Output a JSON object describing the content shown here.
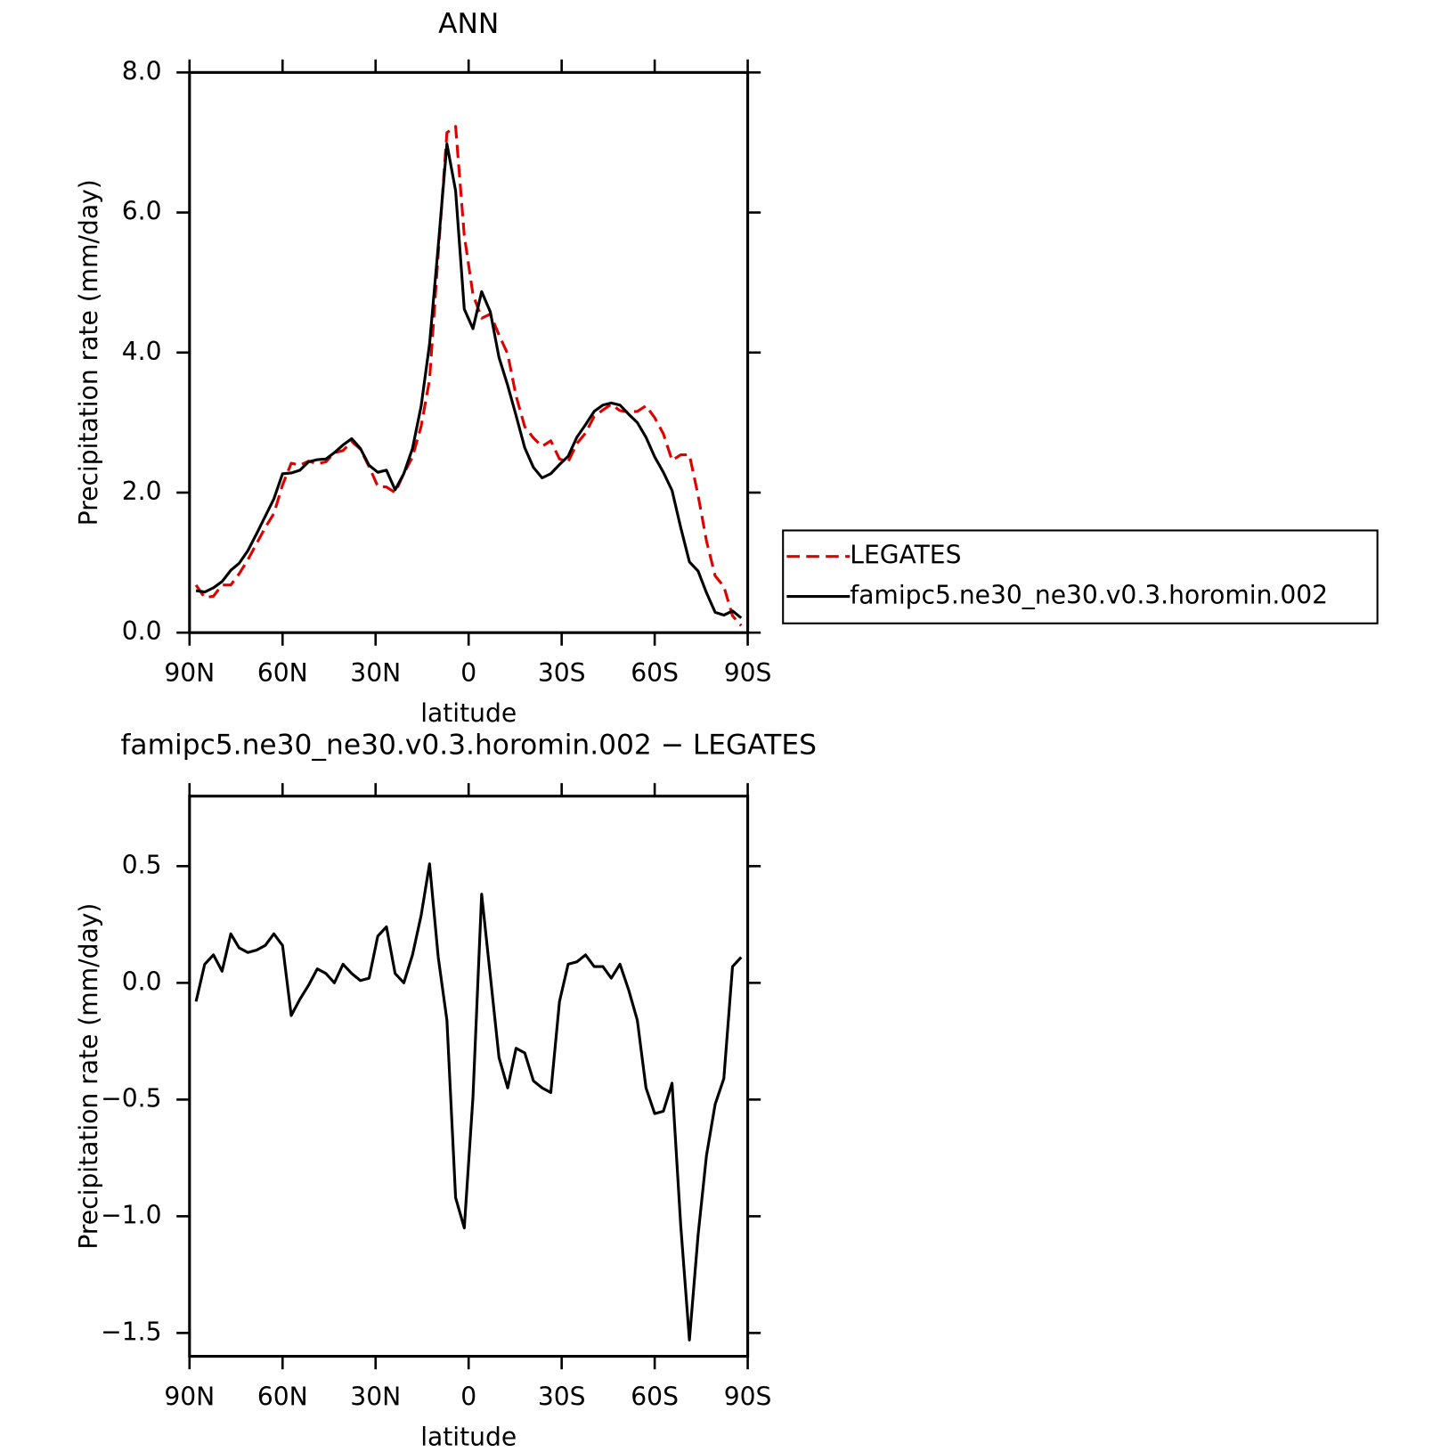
{
  "chart_data": [
    {
      "type": "line",
      "title": "ANN",
      "xlabel": "latitude",
      "ylabel": "Precipitation rate (mm/day)",
      "x": [
        87.9,
        85.1,
        82.3,
        79.5,
        76.7,
        74.0,
        71.2,
        68.4,
        65.6,
        62.8,
        60.0,
        57.2,
        54.4,
        51.6,
        48.8,
        46.0,
        43.3,
        40.5,
        37.7,
        34.9,
        32.1,
        29.3,
        26.5,
        23.7,
        20.9,
        18.1,
        15.3,
        12.6,
        9.8,
        7.0,
        4.2,
        1.4,
        -1.4,
        -4.2,
        -7.0,
        -9.8,
        -12.6,
        -15.3,
        -18.1,
        -20.9,
        -23.7,
        -26.5,
        -29.3,
        -32.1,
        -34.9,
        -37.7,
        -40.5,
        -43.3,
        -46.0,
        -48.8,
        -51.6,
        -54.4,
        -57.2,
        -60.0,
        -62.8,
        -65.6,
        -68.4,
        -71.2,
        -74.0,
        -76.7,
        -79.5,
        -82.3,
        -85.1,
        -87.9
      ],
      "series": [
        {
          "name": "LEGATES",
          "color": "#e00000",
          "dashed": true,
          "values": [
            0.68,
            0.5,
            0.52,
            0.68,
            0.68,
            0.84,
            1.04,
            1.27,
            1.5,
            1.7,
            2.11,
            2.42,
            2.39,
            2.45,
            2.41,
            2.44,
            2.57,
            2.6,
            2.73,
            2.62,
            2.37,
            2.09,
            2.08,
            2.0,
            2.27,
            2.51,
            2.95,
            3.61,
            5.41,
            7.14,
            7.23,
            5.67,
            4.83,
            4.49,
            4.55,
            4.25,
            3.98,
            3.38,
            2.94,
            2.78,
            2.66,
            2.74,
            2.48,
            2.44,
            2.7,
            2.85,
            3.09,
            3.18,
            3.26,
            3.17,
            3.15,
            3.16,
            3.24,
            3.07,
            2.84,
            2.46,
            2.54,
            2.54,
            1.96,
            1.31,
            0.81,
            0.66,
            0.24,
            0.1
          ]
        },
        {
          "name": "famipc5.ne30_ne30.v0.3.horomin.002",
          "color": "#000000",
          "dashed": false,
          "values": [
            0.6,
            0.58,
            0.64,
            0.73,
            0.89,
            0.99,
            1.17,
            1.41,
            1.66,
            1.91,
            2.27,
            2.28,
            2.32,
            2.44,
            2.47,
            2.48,
            2.57,
            2.68,
            2.77,
            2.63,
            2.39,
            2.29,
            2.32,
            2.04,
            2.27,
            2.63,
            3.24,
            4.12,
            5.52,
            6.98,
            6.31,
            4.62,
            4.34,
            4.87,
            4.58,
            3.93,
            3.53,
            3.1,
            2.64,
            2.36,
            2.21,
            2.27,
            2.4,
            2.52,
            2.79,
            2.97,
            3.16,
            3.25,
            3.28,
            3.25,
            3.12,
            3.0,
            2.79,
            2.51,
            2.29,
            2.03,
            1.5,
            1.01,
            0.88,
            0.57,
            0.29,
            0.25,
            0.31,
            0.21
          ]
        }
      ],
      "xlim": [
        90,
        -90
      ],
      "xticks": [
        {
          "value": 90,
          "label": "90N"
        },
        {
          "value": 60,
          "label": "60N"
        },
        {
          "value": 30,
          "label": "30N"
        },
        0,
        {
          "value": -30,
          "label": "30S"
        },
        {
          "value": -60,
          "label": "60S"
        },
        {
          "value": -90,
          "label": "90S"
        }
      ],
      "ylim": [
        0,
        8
      ],
      "yticks": [
        {
          "value": 0,
          "label": "0.0"
        },
        {
          "value": 2,
          "label": "2.0"
        },
        {
          "value": 4,
          "label": "4.0"
        },
        {
          "value": 6,
          "label": "6.0"
        },
        {
          "value": 8,
          "label": "8.0"
        }
      ],
      "legend": "right"
    },
    {
      "type": "line",
      "title": "famipc5.ne30_ne30.v0.3.horomin.002 − LEGATES",
      "xlabel": "latitude",
      "ylabel": "Precipitation rate (mm/day)",
      "x": [
        87.9,
        85.1,
        82.3,
        79.5,
        76.7,
        74.0,
        71.2,
        68.4,
        65.6,
        62.8,
        60.0,
        57.2,
        54.4,
        51.6,
        48.8,
        46.0,
        43.3,
        40.5,
        37.7,
        34.9,
        32.1,
        29.3,
        26.5,
        23.7,
        20.9,
        18.1,
        15.3,
        12.6,
        9.8,
        7.0,
        4.2,
        1.4,
        -1.4,
        -4.2,
        -7.0,
        -9.8,
        -12.6,
        -15.3,
        -18.1,
        -20.9,
        -23.7,
        -26.5,
        -29.3,
        -32.1,
        -34.9,
        -37.7,
        -40.5,
        -43.3,
        -46.0,
        -48.8,
        -51.6,
        -54.4,
        -57.2,
        -60.0,
        -62.8,
        -65.6,
        -68.4,
        -71.2,
        -74.0,
        -76.7,
        -79.5,
        -82.3,
        -85.1,
        -87.9
      ],
      "values": [
        -0.08,
        0.08,
        0.12,
        0.05,
        0.21,
        0.15,
        0.13,
        0.14,
        0.16,
        0.21,
        0.16,
        -0.14,
        -0.07,
        -0.01,
        0.06,
        0.04,
        0.0,
        0.08,
        0.04,
        0.01,
        0.02,
        0.2,
        0.24,
        0.04,
        0.0,
        0.12,
        0.29,
        0.51,
        0.11,
        -0.16,
        -0.92,
        -1.05,
        -0.49,
        0.38,
        0.03,
        -0.32,
        -0.45,
        -0.28,
        -0.3,
        -0.42,
        -0.45,
        -0.47,
        -0.08,
        0.08,
        0.09,
        0.12,
        0.07,
        0.07,
        0.02,
        0.08,
        -0.03,
        -0.16,
        -0.45,
        -0.56,
        -0.55,
        -0.43,
        -1.04,
        -1.53,
        -1.08,
        -0.74,
        -0.52,
        -0.41,
        0.07,
        0.11
      ],
      "color": "#000000",
      "xlim": [
        90,
        -90
      ],
      "xticks": [
        {
          "value": 90,
          "label": "90N"
        },
        {
          "value": 60,
          "label": "60N"
        },
        {
          "value": 30,
          "label": "30N"
        },
        0,
        {
          "value": -30,
          "label": "30S"
        },
        {
          "value": -60,
          "label": "60S"
        },
        {
          "value": -90,
          "label": "90S"
        }
      ],
      "ylim": [
        -1.6,
        0.8
      ],
      "yticks": [
        {
          "value": -1.5,
          "label": "−1.5"
        },
        {
          "value": -1.0,
          "label": "−1.0"
        },
        {
          "value": -0.5,
          "label": "−0.5"
        },
        {
          "value": 0,
          "label": "0.0"
        },
        0.5
      ]
    }
  ]
}
